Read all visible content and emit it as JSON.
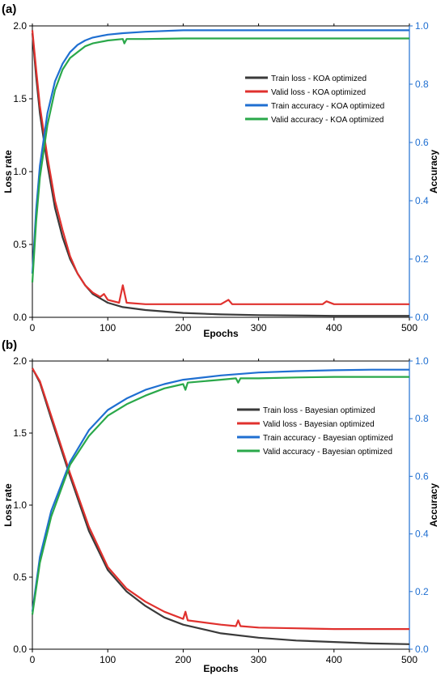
{
  "chart_data": [
    {
      "panel_label": "(a)",
      "type": "line",
      "xlabel": "Epochs",
      "ylabel": "Loss rate",
      "y2label": "Accuracy",
      "xlim": [
        0,
        500
      ],
      "ylim": [
        0,
        2.0
      ],
      "y2lim": [
        0,
        1.0
      ],
      "x_ticks": [
        "0",
        "100",
        "200",
        "300",
        "400",
        "500"
      ],
      "y_ticks": [
        "0.0",
        "0.5",
        "1.0",
        "1.5",
        "2.0"
      ],
      "y2_ticks": [
        "0.0",
        "0.2",
        "0.4",
        "0.6",
        "0.8",
        "1.0"
      ],
      "legend_position": "top-right",
      "series": [
        {
          "name": "Train loss - KOA optimized",
          "axis": "left",
          "color": "#3a3a3a",
          "x": [
            0,
            5,
            10,
            20,
            30,
            40,
            50,
            60,
            70,
            80,
            100,
            120,
            150,
            200,
            250,
            300,
            400,
            500
          ],
          "y": [
            1.95,
            1.65,
            1.4,
            1.05,
            0.75,
            0.55,
            0.4,
            0.3,
            0.22,
            0.16,
            0.1,
            0.07,
            0.05,
            0.03,
            0.02,
            0.015,
            0.01,
            0.01
          ]
        },
        {
          "name": "Valid loss - KOA optimized",
          "axis": "left",
          "color": "#e0312e",
          "x": [
            0,
            5,
            10,
            20,
            30,
            40,
            50,
            60,
            70,
            80,
            90,
            95,
            100,
            115,
            120,
            125,
            150,
            200,
            250,
            260,
            265,
            300,
            385,
            390,
            400,
            500
          ],
          "y": [
            1.97,
            1.7,
            1.45,
            1.1,
            0.8,
            0.6,
            0.42,
            0.3,
            0.22,
            0.17,
            0.14,
            0.16,
            0.12,
            0.1,
            0.22,
            0.1,
            0.09,
            0.09,
            0.09,
            0.12,
            0.09,
            0.09,
            0.09,
            0.11,
            0.09,
            0.09
          ]
        },
        {
          "name": "Train accuracy - KOA optimized",
          "axis": "right",
          "color": "#1f6fd1",
          "x": [
            0,
            5,
            10,
            20,
            30,
            40,
            50,
            60,
            70,
            80,
            100,
            120,
            150,
            200,
            300,
            400,
            500
          ],
          "y": [
            0.15,
            0.37,
            0.52,
            0.7,
            0.81,
            0.87,
            0.91,
            0.935,
            0.95,
            0.96,
            0.97,
            0.975,
            0.98,
            0.985,
            0.985,
            0.985,
            0.985
          ]
        },
        {
          "name": "Valid accuracy - KOA optimized",
          "axis": "right",
          "color": "#2aa84a",
          "x": [
            0,
            5,
            10,
            20,
            30,
            40,
            50,
            60,
            70,
            80,
            100,
            120,
            122,
            125,
            150,
            200,
            300,
            400,
            500
          ],
          "y": [
            0.12,
            0.33,
            0.48,
            0.66,
            0.78,
            0.85,
            0.89,
            0.91,
            0.93,
            0.94,
            0.95,
            0.955,
            0.94,
            0.955,
            0.955,
            0.957,
            0.957,
            0.957,
            0.957
          ]
        }
      ]
    },
    {
      "panel_label": "(b)",
      "type": "line",
      "xlabel": "Epochs",
      "ylabel": "Loss rate",
      "y2label": "Accuracy",
      "xlim": [
        0,
        500
      ],
      "ylim": [
        0,
        2.0
      ],
      "y2lim": [
        0,
        1.0
      ],
      "x_ticks": [
        "0",
        "100",
        "200",
        "300",
        "400",
        "500"
      ],
      "y_ticks": [
        "0.0",
        "0.5",
        "1.0",
        "1.5",
        "2.0"
      ],
      "y2_ticks": [
        "0.0",
        "0.2",
        "0.4",
        "0.6",
        "0.8",
        "1.0"
      ],
      "legend_position": "right",
      "series": [
        {
          "name": "Train loss - Bayesian optimized",
          "axis": "left",
          "color": "#3a3a3a",
          "x": [
            0,
            10,
            25,
            50,
            75,
            100,
            125,
            150,
            175,
            200,
            250,
            300,
            350,
            400,
            450,
            500
          ],
          "y": [
            1.95,
            1.85,
            1.6,
            1.2,
            0.82,
            0.55,
            0.4,
            0.3,
            0.22,
            0.17,
            0.11,
            0.08,
            0.06,
            0.05,
            0.04,
            0.035
          ]
        },
        {
          "name": "Valid loss - Bayesian optimized",
          "axis": "left",
          "color": "#e0312e",
          "x": [
            0,
            10,
            25,
            50,
            75,
            100,
            125,
            150,
            175,
            200,
            203,
            206,
            250,
            270,
            273,
            276,
            300,
            350,
            400,
            450,
            500
          ],
          "y": [
            1.95,
            1.86,
            1.62,
            1.22,
            0.85,
            0.57,
            0.42,
            0.33,
            0.26,
            0.21,
            0.26,
            0.2,
            0.17,
            0.16,
            0.2,
            0.16,
            0.15,
            0.145,
            0.14,
            0.14,
            0.14
          ]
        },
        {
          "name": "Train accuracy - Bayesian optimized",
          "axis": "right",
          "color": "#1f6fd1",
          "x": [
            0,
            10,
            25,
            50,
            75,
            100,
            125,
            150,
            175,
            200,
            250,
            300,
            350,
            400,
            450,
            500
          ],
          "y": [
            0.13,
            0.32,
            0.48,
            0.65,
            0.76,
            0.83,
            0.87,
            0.9,
            0.92,
            0.935,
            0.95,
            0.96,
            0.965,
            0.968,
            0.97,
            0.97
          ]
        },
        {
          "name": "Valid accuracy - Bayesian optimized",
          "axis": "right",
          "color": "#2aa84a",
          "x": [
            0,
            10,
            25,
            50,
            75,
            100,
            125,
            150,
            175,
            200,
            203,
            206,
            250,
            270,
            273,
            276,
            300,
            350,
            400,
            450,
            500
          ],
          "y": [
            0.12,
            0.3,
            0.46,
            0.64,
            0.74,
            0.81,
            0.85,
            0.88,
            0.905,
            0.92,
            0.9,
            0.925,
            0.935,
            0.94,
            0.925,
            0.94,
            0.94,
            0.943,
            0.945,
            0.945,
            0.945
          ]
        }
      ]
    }
  ]
}
